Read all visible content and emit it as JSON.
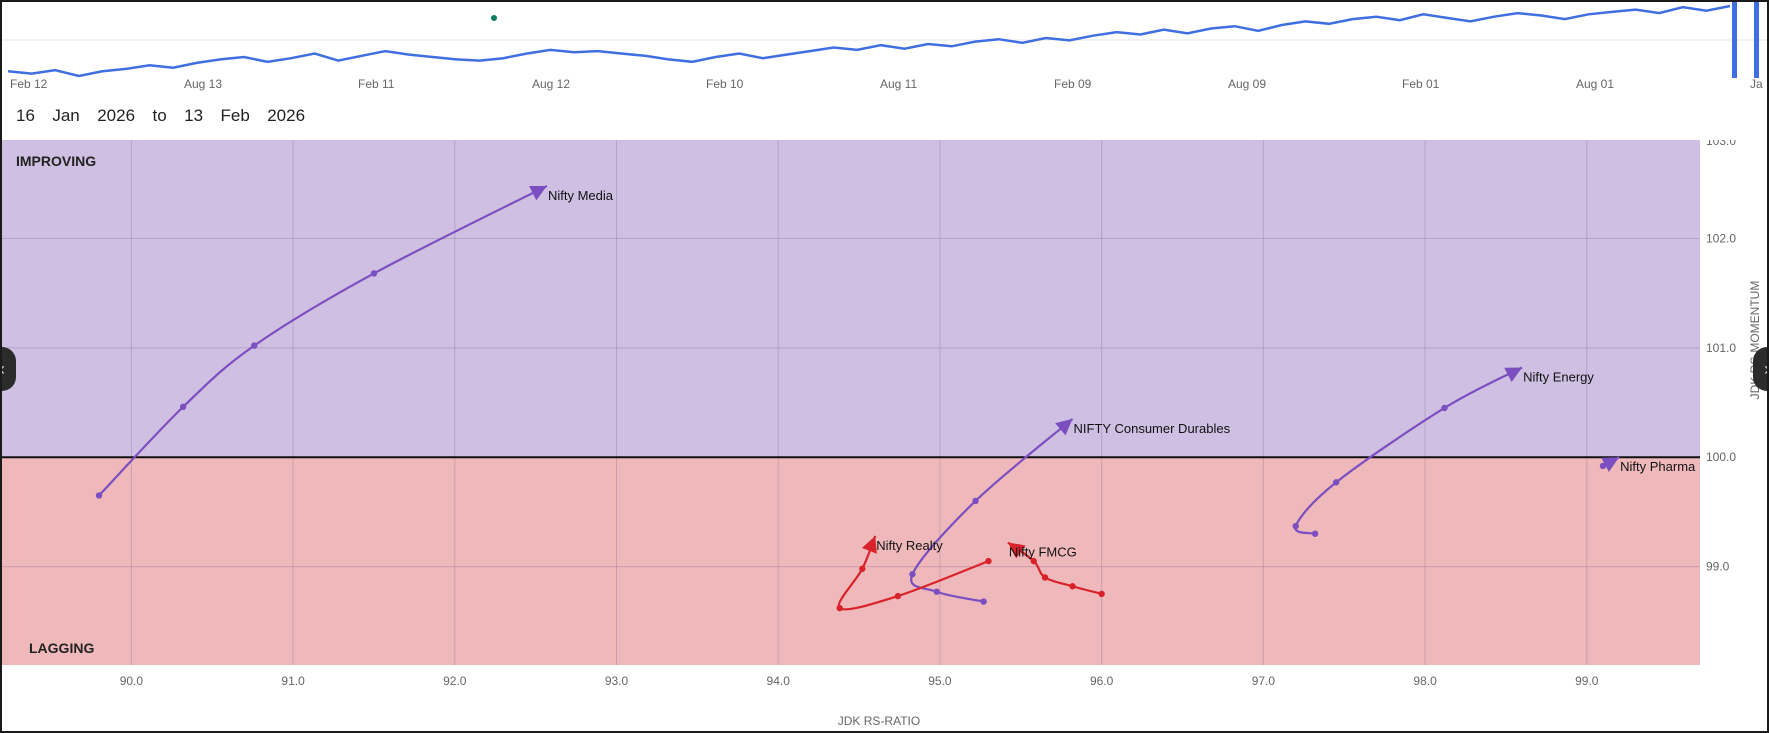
{
  "date_range": {
    "from": "16  Jan  2026",
    "to_word": "to",
    "to": "13  Feb  2026"
  },
  "timeline": {
    "tick_labels": [
      "Feb 12",
      "Aug 13",
      "Feb 11",
      "Aug 12",
      "Feb 10",
      "Aug 11",
      "Feb 09",
      "Aug 09",
      "Feb 01",
      "Aug 01",
      "Ja"
    ],
    "line_color": "#3f6fe0",
    "values": [
      40,
      38,
      41,
      36,
      40,
      42,
      45,
      43,
      47,
      50,
      52,
      48,
      51,
      55,
      49,
      53,
      57,
      54,
      52,
      50,
      49,
      51,
      55,
      58,
      56,
      57,
      55,
      53,
      50,
      48,
      52,
      55,
      51,
      54,
      57,
      60,
      58,
      62,
      59,
      63,
      61,
      65,
      67,
      64,
      68,
      66,
      70,
      73,
      71,
      75,
      72,
      76,
      78,
      74,
      79,
      82,
      80,
      84,
      86,
      83,
      88,
      85,
      82,
      86,
      89,
      87,
      84,
      88,
      90,
      92,
      89,
      94,
      91,
      95
    ]
  },
  "chart_data": {
    "type": "scatter",
    "xlabel": "JDK RS-RATIO",
    "ylabel": "JDK RS-MOMENTUM",
    "xlim": [
      89.2,
      99.7
    ],
    "ylim": [
      98.1,
      102.9
    ],
    "x_ticks": [
      "90.0",
      "91.0",
      "92.0",
      "93.0",
      "94.0",
      "95.0",
      "96.0",
      "97.0",
      "98.0",
      "99.0"
    ],
    "y_ticks": [
      "99.0",
      "100.0",
      "101.0",
      "102.0"
    ],
    "y_tick_top_partial": "103.0",
    "quadrants": {
      "improving": {
        "label": "IMPROVING",
        "color": "#cfbfe2"
      },
      "lagging": {
        "label": "LAGGING",
        "color": "#efb9bc"
      }
    },
    "center_line": 100.0,
    "series": [
      {
        "name": "Nifty Media",
        "color": "#7b4fbf",
        "points": [
          [
            89.8,
            99.65
          ],
          [
            90.32,
            100.46
          ],
          [
            90.76,
            101.02
          ],
          [
            91.5,
            101.68
          ],
          [
            92.57,
            102.48
          ]
        ]
      },
      {
        "name": "NIFTY Consumer Durables",
        "color": "#7b4fbf",
        "points": [
          [
            95.27,
            98.68
          ],
          [
            94.98,
            98.77
          ],
          [
            94.83,
            98.93
          ],
          [
            95.22,
            99.6
          ],
          [
            95.82,
            100.35
          ]
        ]
      },
      {
        "name": "Nifty Energy",
        "color": "#7b4fbf",
        "points": [
          [
            97.32,
            99.3
          ],
          [
            97.2,
            99.37
          ],
          [
            97.45,
            99.77
          ],
          [
            98.12,
            100.45
          ],
          [
            98.6,
            100.82
          ]
        ]
      },
      {
        "name": "Nifty Pharma",
        "color": "#7b4fbf",
        "points": [
          [
            99.1,
            99.92
          ],
          [
            99.2,
            100.0
          ]
        ]
      },
      {
        "name": "Nifty Realty",
        "color": "#d8232a",
        "points": [
          [
            95.3,
            99.05
          ],
          [
            94.74,
            98.73
          ],
          [
            94.38,
            98.62
          ],
          [
            94.52,
            98.98
          ],
          [
            94.6,
            99.28
          ]
        ]
      },
      {
        "name": "Nifty FMCG",
        "color": "#d8232a",
        "points": [
          [
            96.0,
            98.75
          ],
          [
            95.82,
            98.82
          ],
          [
            95.65,
            98.9
          ],
          [
            95.58,
            99.05
          ],
          [
            95.42,
            99.22
          ]
        ]
      }
    ]
  }
}
